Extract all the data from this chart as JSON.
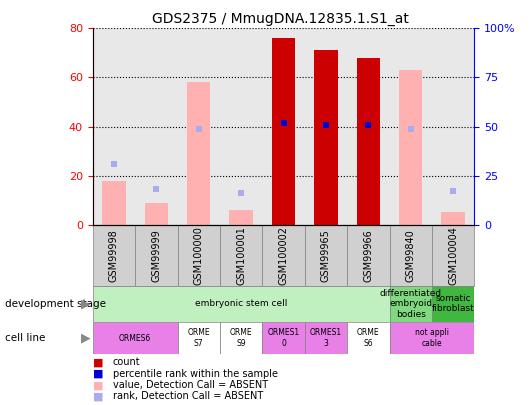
{
  "title": "GDS2375 / MmugDNA.12835.1.S1_at",
  "samples": [
    "GSM99998",
    "GSM99999",
    "GSM100000",
    "GSM100001",
    "GSM100002",
    "GSM99965",
    "GSM99966",
    "GSM99840",
    "GSM100004"
  ],
  "count": [
    null,
    null,
    null,
    null,
    76,
    71,
    68,
    null,
    null
  ],
  "percentile_rank": [
    null,
    null,
    null,
    null,
    52,
    51,
    51,
    null,
    null
  ],
  "absent_value": [
    18,
    9,
    58,
    6,
    null,
    null,
    null,
    63,
    5
  ],
  "absent_rank": [
    31,
    18,
    49,
    16,
    null,
    null,
    null,
    49,
    17
  ],
  "ylim_left": [
    0,
    80
  ],
  "ylim_right": [
    0,
    100
  ],
  "yticks_left": [
    0,
    20,
    40,
    60,
    80
  ],
  "yticks_right": [
    0,
    25,
    50,
    75,
    100
  ],
  "yticklabels_right": [
    "0",
    "25",
    "50",
    "75",
    "100%"
  ],
  "count_color": "#cc0000",
  "percentile_color": "#0000cc",
  "absent_value_color": "#ffb0b0",
  "absent_rank_color": "#aaaaee",
  "plot_bg_color": "#e8e8e8",
  "background_color": "#ffffff",
  "dev_stage_groups": [
    {
      "start": 0,
      "end": 6,
      "color": "#c0f0c0",
      "label": "embryonic stem cell"
    },
    {
      "start": 7,
      "end": 7,
      "color": "#80d880",
      "label": "differentiated\nembryoid\nbodies"
    },
    {
      "start": 8,
      "end": 8,
      "color": "#40b840",
      "label": "somatic\nfibroblast"
    }
  ],
  "cell_line_groups": [
    {
      "start": 0,
      "end": 1,
      "color": "#e880e8",
      "label": "ORMES6"
    },
    {
      "start": 2,
      "end": 2,
      "color": "#ffffff",
      "label": "ORME\nS7"
    },
    {
      "start": 3,
      "end": 3,
      "color": "#ffffff",
      "label": "ORME\nS9"
    },
    {
      "start": 4,
      "end": 4,
      "color": "#e880e8",
      "label": "ORMES1\n0"
    },
    {
      "start": 5,
      "end": 5,
      "color": "#e880e8",
      "label": "ORMES1\n3"
    },
    {
      "start": 6,
      "end": 6,
      "color": "#ffffff",
      "label": "ORME\nS6"
    },
    {
      "start": 7,
      "end": 8,
      "color": "#e880e8",
      "label": "not appli\ncable"
    }
  ],
  "legend_items": [
    {
      "color": "#cc0000",
      "label": "count"
    },
    {
      "color": "#0000cc",
      "label": "percentile rank within the sample"
    },
    {
      "color": "#ffb0b0",
      "label": "value, Detection Call = ABSENT"
    },
    {
      "color": "#aaaaee",
      "label": "rank, Detection Call = ABSENT"
    }
  ]
}
